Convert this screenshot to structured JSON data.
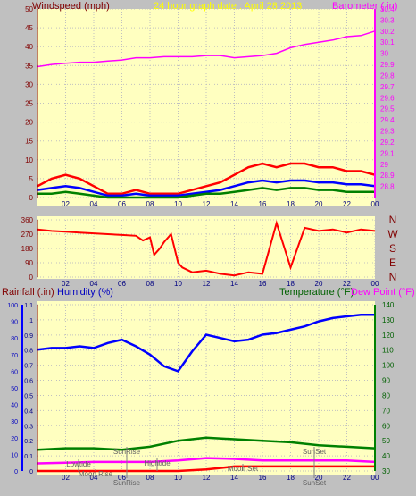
{
  "chart_data": [
    {
      "type": "line",
      "title": "24 hour graph date : April 28 2013",
      "ylabel_left": "Windspeed (mph)",
      "ylabel_right": "Barometer ( in)",
      "xticks": [
        "02",
        "04",
        "06",
        "08",
        "10",
        "12",
        "14",
        "16",
        "18",
        "20",
        "22",
        "00"
      ],
      "ylim_left": [
        0,
        50
      ],
      "yticks_left": [
        "0",
        "5",
        "10",
        "15",
        "20",
        "25",
        "30",
        "35",
        "40",
        "45",
        "50"
      ],
      "ylim_right": [
        28.7,
        30.4
      ],
      "yticks_right": [
        "28.8",
        "28.9",
        "29",
        "29.1",
        "29.2",
        "29.3",
        "29.4",
        "29.5",
        "29.6",
        "29.7",
        "29.8",
        "29.9",
        "30",
        "30.1",
        "30.2",
        "30.3",
        "30.4"
      ],
      "grid": true,
      "colors": {
        "gust": "#ff0000",
        "avg": "#0000ff",
        "min": "#008000",
        "baro": "#ff00ff",
        "title": "#ffff00",
        "leftaxis": "#800000"
      },
      "series": [
        {
          "name": "Barometer",
          "axis": "right",
          "x": [
            0,
            1,
            2,
            3,
            4,
            5,
            6,
            7,
            8,
            9,
            10,
            11,
            12,
            13,
            14,
            15,
            16,
            17,
            18,
            19,
            20,
            21,
            22,
            23,
            24
          ],
          "values": [
            29.88,
            29.9,
            29.91,
            29.92,
            29.92,
            29.93,
            29.94,
            29.96,
            29.96,
            29.97,
            29.97,
            29.97,
            29.98,
            29.98,
            29.96,
            29.97,
            29.98,
            30.0,
            30.05,
            30.08,
            30.1,
            30.12,
            30.15,
            30.16,
            30.2
          ]
        },
        {
          "name": "Gust",
          "axis": "left",
          "x": [
            0,
            1,
            2,
            3,
            4,
            5,
            6,
            7,
            8,
            9,
            10,
            11,
            12,
            13,
            14,
            15,
            16,
            17,
            18,
            19,
            20,
            21,
            22,
            23,
            24
          ],
          "values": [
            3,
            5,
            6,
            5,
            3,
            1,
            1,
            2,
            1,
            1,
            1,
            2,
            3,
            4,
            6,
            8,
            9,
            8,
            9,
            9,
            8,
            8,
            7,
            7,
            6
          ]
        },
        {
          "name": "Average",
          "axis": "left",
          "x": [
            0,
            1,
            2,
            3,
            4,
            5,
            6,
            7,
            8,
            9,
            10,
            11,
            12,
            13,
            14,
            15,
            16,
            17,
            18,
            19,
            20,
            21,
            22,
            23,
            24
          ],
          "values": [
            2,
            2.5,
            3,
            2.5,
            1.5,
            0.5,
            0.5,
            1,
            0.5,
            0.5,
            0.5,
            1,
            1.5,
            2,
            3,
            4,
            4.5,
            4,
            4.5,
            4.5,
            4,
            4,
            3.5,
            3.5,
            3
          ]
        },
        {
          "name": "Minimum",
          "axis": "left",
          "x": [
            0,
            1,
            2,
            3,
            4,
            5,
            6,
            7,
            8,
            9,
            10,
            11,
            12,
            13,
            14,
            15,
            16,
            17,
            18,
            19,
            20,
            21,
            22,
            23,
            24
          ],
          "values": [
            1,
            1,
            1.5,
            1,
            0.5,
            0,
            0,
            0,
            0,
            0,
            0,
            0.5,
            1,
            1,
            1.5,
            2,
            2.5,
            2,
            2.5,
            2.5,
            2,
            2,
            1.5,
            1.5,
            1.5
          ]
        }
      ]
    },
    {
      "type": "line",
      "xticks": [
        "02",
        "04",
        "06",
        "08",
        "10",
        "12",
        "14",
        "16",
        "18",
        "20",
        "22",
        "00"
      ],
      "ylim": [
        0,
        360
      ],
      "yticks": [
        "0",
        "90",
        "180",
        "270",
        "360"
      ],
      "dir_labels": [
        "N",
        "W",
        "S",
        "E",
        "N"
      ],
      "series": [
        {
          "name": "Wind Direction",
          "x": [
            0,
            1,
            2,
            3,
            4,
            5,
            6,
            7,
            7.5,
            8,
            8.3,
            8.7,
            9,
            9.5,
            10,
            10.3,
            11,
            12,
            13,
            14,
            15,
            16,
            17,
            18,
            19,
            20,
            21,
            22,
            23,
            24
          ],
          "values": [
            300,
            290,
            285,
            280,
            275,
            270,
            265,
            260,
            230,
            250,
            140,
            180,
            220,
            270,
            90,
            60,
            30,
            40,
            20,
            10,
            30,
            20,
            340,
            60,
            310,
            290,
            300,
            280,
            300,
            290
          ]
        }
      ]
    },
    {
      "type": "line",
      "ylabel_left_1": "Rainfall (.in)",
      "ylabel_left_2": "Humidity (%)",
      "ylabel_right_1": "Temperature (°F)",
      "ylabel_right_2": "Dew Point (°F)",
      "xticks": [
        "02",
        "04",
        "06",
        "08",
        "10",
        "12",
        "14",
        "16",
        "18",
        "20",
        "22",
        "00"
      ],
      "yticks_left_outer": [
        "0",
        "10",
        "20",
        "30",
        "40",
        "50",
        "60",
        "70",
        "80",
        "90",
        "100"
      ],
      "yticks_left_inner": [
        "0",
        "0.1",
        "0.2",
        "0.3",
        "0.4",
        "0.5",
        "0.6",
        "0.7",
        "0.8",
        "0.9",
        "1",
        "1.1"
      ],
      "yticks_right": [
        "30",
        "40",
        "50",
        "60",
        "70",
        "80",
        "90",
        "100",
        "110",
        "120",
        "130",
        "140"
      ],
      "ylim_humidity": [
        0,
        100
      ],
      "ylim_temp": [
        30,
        140
      ],
      "annotations": [
        "Lowtide",
        "Moon Rise",
        "SunRise",
        "SunRise",
        "Hightide",
        "Moon Set",
        "SunSet",
        "SunSet"
      ],
      "series": [
        {
          "name": "Humidity",
          "axis": "humidity",
          "x": [
            0,
            1,
            2,
            3,
            4,
            5,
            6,
            7,
            8,
            9,
            10,
            11,
            12,
            13,
            14,
            15,
            16,
            17,
            18,
            19,
            20,
            21,
            22,
            23,
            24
          ],
          "values": [
            73,
            74,
            74,
            75,
            74,
            77,
            79,
            75,
            70,
            63,
            60,
            72,
            82,
            80,
            78,
            79,
            82,
            83,
            85,
            87,
            90,
            92,
            93,
            94,
            94
          ]
        },
        {
          "name": "Temperature",
          "axis": "temp",
          "x": [
            0,
            2,
            4,
            6,
            8,
            10,
            12,
            14,
            16,
            18,
            20,
            22,
            24
          ],
          "values": [
            44,
            45,
            45,
            44,
            46,
            50,
            52,
            51,
            50,
            49,
            47,
            46,
            45
          ]
        },
        {
          "name": "Dew Point",
          "axis": "temp",
          "x": [
            0,
            2,
            4,
            6,
            8,
            10,
            12,
            14,
            16,
            18,
            20,
            22,
            24
          ],
          "values": [
            35,
            35.5,
            36,
            36,
            36,
            37,
            38.5,
            38,
            37,
            37,
            37,
            37,
            36
          ]
        },
        {
          "name": "Rainfall",
          "axis": "rain",
          "x": [
            0,
            10,
            12,
            13,
            14,
            24
          ],
          "values": [
            0,
            0,
            0.01,
            0.02,
            0.03,
            0.03
          ]
        }
      ]
    }
  ]
}
